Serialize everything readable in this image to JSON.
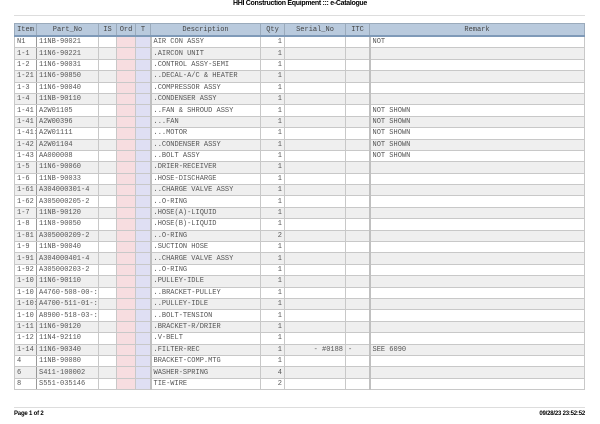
{
  "title": "HHI Construction Equipment ::: e-Catalogue",
  "columns": [
    "Item",
    "Part_No",
    "IS",
    "Ord",
    "T",
    "Description",
    "Qty",
    "Serial_No",
    "ITC",
    "Remark"
  ],
  "rows": [
    {
      "item": "N1",
      "part": "11NB-90021",
      "desc": "AIR CON ASSY",
      "qty": "1",
      "serial": "",
      "itc": "",
      "remark": "NOT"
    },
    {
      "item": "1-1",
      "part": "11N6-90221",
      "desc": ".AIRCON UNIT",
      "qty": "1",
      "serial": "",
      "itc": "",
      "remark": ""
    },
    {
      "item": "1-2",
      "part": "11N6-90031",
      "desc": ".CONTROL ASSY-SEMI",
      "qty": "1",
      "serial": "",
      "itc": "",
      "remark": ""
    },
    {
      "item": "1-21",
      "part": "11N6-90850",
      "desc": "..DECAL-A/C & HEATER",
      "qty": "1",
      "serial": "",
      "itc": "",
      "remark": ""
    },
    {
      "item": "1-3",
      "part": "11N6-90040",
      "desc": ".COMPRESSOR ASSY",
      "qty": "1",
      "serial": "",
      "itc": "",
      "remark": ""
    },
    {
      "item": "1-4",
      "part": "11NB-90110",
      "desc": ".CONDENSER ASSY",
      "qty": "1",
      "serial": "",
      "itc": "",
      "remark": ""
    },
    {
      "item": "1-41",
      "part": "A2W01105",
      "desc": "..FAN & SHROUD ASSY",
      "qty": "1",
      "serial": "",
      "itc": "",
      "remark": "NOT SHOWN"
    },
    {
      "item": "1-41",
      "part": "A2W00396",
      "desc": "...FAN",
      "qty": "1",
      "serial": "",
      "itc": "",
      "remark": "NOT SHOWN"
    },
    {
      "item": "1-41:",
      "part": "A2W01111",
      "desc": "...MOTOR",
      "qty": "1",
      "serial": "",
      "itc": "",
      "remark": "NOT SHOWN"
    },
    {
      "item": "1-42",
      "part": "A2W01104",
      "desc": "..CONDENSER ASSY",
      "qty": "1",
      "serial": "",
      "itc": "",
      "remark": "NOT SHOWN"
    },
    {
      "item": "1-43",
      "part": "AA000008",
      "desc": "..BOLT ASSY",
      "qty": "1",
      "serial": "",
      "itc": "",
      "remark": "NOT SHOWN"
    },
    {
      "item": "1-5",
      "part": "11N6-90060",
      "desc": ".DRIER-RECEIVER",
      "qty": "1",
      "serial": "",
      "itc": "",
      "remark": ""
    },
    {
      "item": "1-6",
      "part": "11NB-90033",
      "desc": ".HOSE-DISCHARGE",
      "qty": "1",
      "serial": "",
      "itc": "",
      "remark": ""
    },
    {
      "item": "1-61",
      "part": "A304000301-4",
      "desc": "..CHARGE VALVE ASSY",
      "qty": "1",
      "serial": "",
      "itc": "",
      "remark": ""
    },
    {
      "item": "1-62",
      "part": "A305000205-2",
      "desc": "..O-RING",
      "qty": "1",
      "serial": "",
      "itc": "",
      "remark": ""
    },
    {
      "item": "1-7",
      "part": "11NB-90120",
      "desc": ".HOSE(A)-LIQUID",
      "qty": "1",
      "serial": "",
      "itc": "",
      "remark": ""
    },
    {
      "item": "1-8",
      "part": "11N8-90050",
      "desc": ".HOSE(B)-LIQUID",
      "qty": "1",
      "serial": "",
      "itc": "",
      "remark": ""
    },
    {
      "item": "1-81",
      "part": "A305000209-2",
      "desc": "..O-RING",
      "qty": "2",
      "serial": "",
      "itc": "",
      "remark": ""
    },
    {
      "item": "1-9",
      "part": "11NB-90040",
      "desc": ".SUCTION HOSE",
      "qty": "1",
      "serial": "",
      "itc": "",
      "remark": ""
    },
    {
      "item": "1-91",
      "part": "A304000401-4",
      "desc": "..CHARGE VALVE ASSY",
      "qty": "1",
      "serial": "",
      "itc": "",
      "remark": ""
    },
    {
      "item": "1-92",
      "part": "A305000203-2",
      "desc": "..O-RING",
      "qty": "1",
      "serial": "",
      "itc": "",
      "remark": ""
    },
    {
      "item": "1-10",
      "part": "11N6-90110",
      "desc": ".PULLEY-IDLE",
      "qty": "1",
      "serial": "",
      "itc": "",
      "remark": ""
    },
    {
      "item": "1-10",
      "part": "A4760-508-00-:",
      "desc": "..BRACKET-PULLEY",
      "qty": "1",
      "serial": "",
      "itc": "",
      "remark": ""
    },
    {
      "item": "1-10:",
      "part": "A4700-511-01-:",
      "desc": "..PULLEY-IDLE",
      "qty": "1",
      "serial": "",
      "itc": "",
      "remark": ""
    },
    {
      "item": "1-10",
      "part": "A8900-518-03-:",
      "desc": "..BOLT-TENSION",
      "qty": "1",
      "serial": "",
      "itc": "",
      "remark": ""
    },
    {
      "item": "1-11",
      "part": "11N6-90120",
      "desc": ".BRACKET-R/DRIER",
      "qty": "1",
      "serial": "",
      "itc": "",
      "remark": ""
    },
    {
      "item": "1-12",
      "part": "11N4-92110",
      "desc": ".V-BELT",
      "qty": "1",
      "serial": "",
      "itc": "",
      "remark": ""
    },
    {
      "item": "1-14",
      "part": "11N6-90340",
      "desc": ".FILTER-REC",
      "qty": "1",
      "serial": "- #0188",
      "itc": "-",
      "remark": "SEE 6090"
    },
    {
      "item": "4",
      "part": "11NB-90080",
      "desc": "BRACKET-COMP.MTG",
      "qty": "1",
      "serial": "",
      "itc": "",
      "remark": ""
    },
    {
      "item": "6",
      "part": "S411-100002",
      "desc": "WASHER-SPRING",
      "qty": "4",
      "serial": "",
      "itc": "",
      "remark": ""
    },
    {
      "item": "8",
      "part": "S551-035146",
      "desc": "TIE-WIRE",
      "qty": "2",
      "serial": "",
      "itc": "",
      "remark": ""
    }
  ],
  "footer": {
    "page": "Page 1 of 2",
    "timestamp": "09/28/23 23:52:52"
  }
}
